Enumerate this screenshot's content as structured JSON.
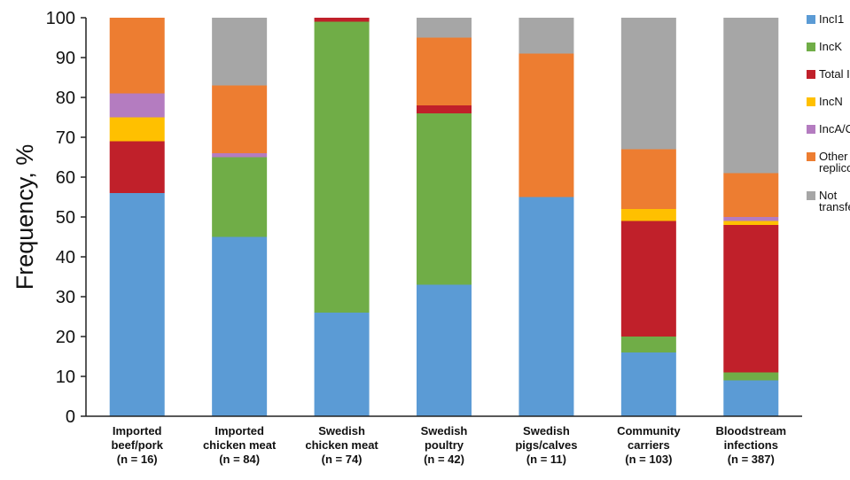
{
  "chart_data": {
    "type": "bar",
    "stacked": true,
    "title": "",
    "xlabel": "",
    "ylabel": "Frequency, %",
    "ylim": [
      0,
      100
    ],
    "yticks": [
      0,
      10,
      20,
      30,
      40,
      50,
      60,
      70,
      80,
      90,
      100
    ],
    "grid": false,
    "legend_position": "right",
    "categories": [
      [
        "Imported",
        "beef/pork",
        "(n = 16)"
      ],
      [
        "Imported",
        "chicken meat",
        "(n = 84)"
      ],
      [
        "Swedish",
        "chicken meat",
        "(n = 74)"
      ],
      [
        "Swedish",
        "poultry",
        "(n = 42)"
      ],
      [
        "Swedish",
        "pigs/calves",
        "(n = 11)"
      ],
      [
        "Community",
        "carriers",
        "(n = 103)"
      ],
      [
        "Bloodstream",
        "infections",
        "(n = 387)"
      ]
    ],
    "series": [
      {
        "name": "IncI1",
        "legend_lines": [
          "IncI1"
        ],
        "color": "#5b9bd5",
        "values": [
          56,
          45,
          26,
          33,
          55,
          16,
          9
        ]
      },
      {
        "name": "IncK",
        "legend_lines": [
          "IncK"
        ],
        "color": "#70ad47",
        "values": [
          0,
          20,
          73,
          43,
          0,
          4,
          2
        ]
      },
      {
        "name": "Total IncF",
        "legend_lines": [
          "Total IncF"
        ],
        "color": "#c0202a",
        "values": [
          13,
          0,
          1,
          2,
          0,
          29,
          37
        ]
      },
      {
        "name": "IncN",
        "legend_lines": [
          "IncN"
        ],
        "color": "#ffc000",
        "values": [
          6,
          0,
          0,
          0,
          0,
          3,
          1
        ]
      },
      {
        "name": "IncA/C",
        "legend_lines": [
          "IncA/C"
        ],
        "color": "#b47cc0",
        "values": [
          6,
          1,
          0,
          0,
          0,
          0,
          1
        ]
      },
      {
        "name": "Other replicons",
        "legend_lines": [
          "Other",
          "replicons"
        ],
        "color": "#ed7d31",
        "values": [
          19,
          17,
          0,
          17,
          36,
          15,
          11
        ]
      },
      {
        "name": "Not transferred",
        "legend_lines": [
          "Not",
          "transferred"
        ],
        "color": "#a6a6a6",
        "values": [
          0,
          17,
          0,
          5,
          9,
          33,
          39
        ]
      }
    ]
  }
}
